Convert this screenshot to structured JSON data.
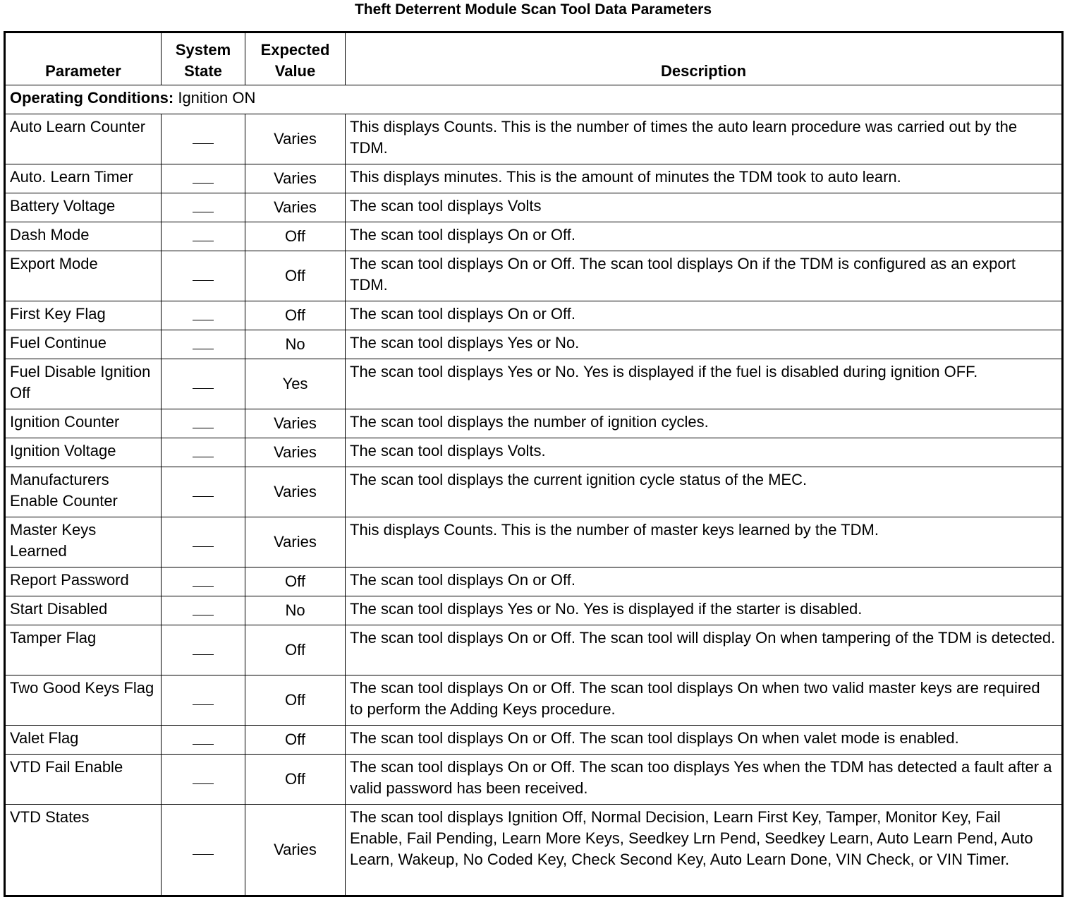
{
  "title": "Theft Deterrent Module Scan Tool Data Parameters",
  "headers": {
    "parameter": "Parameter",
    "system_state": "System State",
    "expected_value": "Expected Value",
    "description": "Description"
  },
  "operating_conditions": {
    "label": "Operating Conditions:",
    "value": "Ignition ON"
  },
  "rows": [
    {
      "parameter": "Auto Learn Counter",
      "system_state": "—",
      "expected_value": "Varies",
      "description": "This displays Counts. This is the number of times the auto learn procedure was carried out by the TDM."
    },
    {
      "parameter": "Auto. Learn Timer",
      "system_state": "—",
      "expected_value": "Varies",
      "description": "This displays minutes. This is the amount of minutes the TDM took to auto learn."
    },
    {
      "parameter": "Battery Voltage",
      "system_state": "—",
      "expected_value": "Varies",
      "description": "The scan tool displays Volts"
    },
    {
      "parameter": "Dash Mode",
      "system_state": "—",
      "expected_value": "Off",
      "description": "The scan tool displays On or Off."
    },
    {
      "parameter": "Export Mode",
      "system_state": "—",
      "expected_value": "Off",
      "description": "The scan tool displays On or Off. The scan tool displays On if the TDM is configured as an export TDM."
    },
    {
      "parameter": "First Key Flag",
      "system_state": "—",
      "expected_value": "Off",
      "description": "The scan tool displays On or Off."
    },
    {
      "parameter": "Fuel Continue",
      "system_state": "—",
      "expected_value": "No",
      "description": "The scan tool displays Yes or No."
    },
    {
      "parameter": "Fuel Disable Ignition Off",
      "system_state": "—",
      "expected_value": "Yes",
      "description": "The scan tool displays Yes or No. Yes is displayed if the fuel is disabled during ignition OFF."
    },
    {
      "parameter": "Ignition Counter",
      "system_state": "—",
      "expected_value": "Varies",
      "description": "The scan tool displays the number of ignition cycles."
    },
    {
      "parameter": "Ignition Voltage",
      "system_state": "—",
      "expected_value": "Varies",
      "description": "The scan tool displays Volts."
    },
    {
      "parameter": "Manufacturers Enable Counter",
      "system_state": "—",
      "expected_value": "Varies",
      "description": "The scan tool displays the current ignition cycle status of the MEC."
    },
    {
      "parameter": "Master Keys Learned",
      "system_state": "—",
      "expected_value": "Varies",
      "description": "This displays Counts. This is the number of master keys learned by the TDM."
    },
    {
      "parameter": "Report Password",
      "system_state": "—",
      "expected_value": "Off",
      "description": "The scan tool displays On or Off."
    },
    {
      "parameter": "Start Disabled",
      "system_state": "—",
      "expected_value": "No",
      "description": "The scan tool displays Yes or No. Yes is displayed if the starter is disabled."
    },
    {
      "parameter": "Tamper Flag",
      "system_state": "—",
      "expected_value": "Off",
      "description": "The scan tool displays On or Off. The scan tool will display On when tampering of the TDM is detected."
    },
    {
      "parameter": "Two Good Keys Flag",
      "system_state": "—",
      "expected_value": "Off",
      "description": "The scan tool displays On or Off. The scan tool displays On when two valid master keys are required to perform the Adding Keys procedure."
    },
    {
      "parameter": "Valet Flag",
      "system_state": "—",
      "expected_value": "Off",
      "description": "The scan tool displays On or Off. The scan tool displays On when valet mode is enabled."
    },
    {
      "parameter": "VTD Fail Enable",
      "system_state": "—",
      "expected_value": "Off",
      "description": "The scan tool displays On or Off. The scan too displays Yes when the TDM has detected a fault after a valid password has been received."
    },
    {
      "parameter": "VTD States",
      "system_state": "—",
      "expected_value": "Varies",
      "description": "The scan tool displays Ignition Off, Normal Decision, Learn First Key, Tamper, Monitor Key, Fail Enable, Fail Pending, Learn More Keys, Seedkey Lrn Pend, Seedkey Learn, Auto Learn Pend, Auto Learn, Wakeup, No Coded Key, Check Second Key, Auto Learn Done, VIN Check, or VIN Timer."
    }
  ]
}
